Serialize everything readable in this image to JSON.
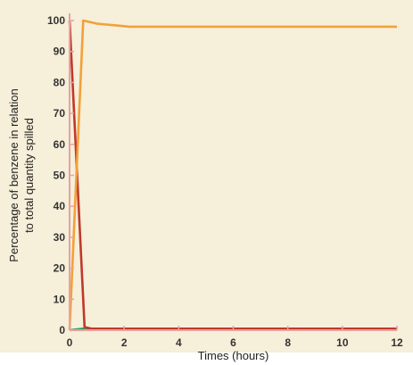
{
  "chart_data": {
    "type": "line",
    "xlabel": "Times (hours)",
    "ylabel_lines": [
      "Percentage of benzene in relation",
      "to total quantity spilled"
    ],
    "xlim": [
      0,
      12
    ],
    "ylim": [
      0,
      100
    ],
    "xticks": [
      0,
      2,
      4,
      6,
      8,
      10,
      12
    ],
    "yticks": [
      0,
      10,
      20,
      30,
      40,
      50,
      60,
      70,
      80,
      90,
      100
    ],
    "grid": false,
    "legend": "none",
    "colors": {
      "background": "#f6efd9",
      "axis": "#e5a3a3",
      "tick_text": "#333333"
    },
    "series": [
      {
        "color": "#f2a13a",
        "x": [
          0,
          0.5,
          1,
          2.2,
          4,
          6,
          8,
          10,
          12
        ],
        "y": [
          0,
          100,
          99,
          98,
          98,
          98,
          98,
          98,
          98
        ]
      },
      {
        "color": "#c0392b",
        "x": [
          0,
          0.55,
          0.8,
          2,
          4,
          6,
          8,
          10,
          12
        ],
        "y": [
          100,
          1,
          0.5,
          0.5,
          0.5,
          0.5,
          0.5,
          0.5,
          0.5
        ]
      },
      {
        "color": "#3a9b5b",
        "x": [
          0,
          0.5,
          1,
          2,
          4,
          6,
          8,
          10,
          12
        ],
        "y": [
          0,
          0.5,
          0.3,
          0.3,
          0.3,
          0.3,
          0.3,
          0.3,
          0.3
        ]
      }
    ]
  }
}
